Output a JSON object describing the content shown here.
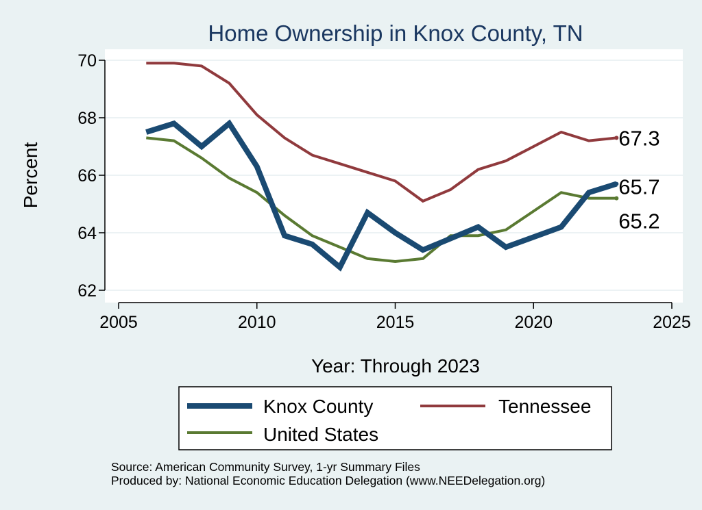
{
  "chart_data": {
    "type": "line",
    "title": "Home Ownership in Knox County, TN",
    "xlabel": "Year: Through 2023",
    "ylabel": "Percent",
    "xlim": [
      2005,
      2025
    ],
    "ylim": [
      62,
      70
    ],
    "x_ticks": [
      2005,
      2010,
      2015,
      2020,
      2025
    ],
    "y_ticks": [
      62,
      64,
      66,
      68,
      70
    ],
    "grid": "horizontal",
    "legend_position": "bottom",
    "series": [
      {
        "name": "Knox County",
        "color": "#1a4a72",
        "x": [
          2006,
          2007,
          2008,
          2009,
          2010,
          2011,
          2012,
          2013,
          2014,
          2015,
          2016,
          2017,
          2018,
          2019,
          2021,
          2022,
          2023
        ],
        "values": [
          67.5,
          67.8,
          67.0,
          67.8,
          66.3,
          63.9,
          63.6,
          62.8,
          64.7,
          64.0,
          63.4,
          63.8,
          64.2,
          63.5,
          64.2,
          65.4,
          65.7
        ],
        "end_label": "65.7"
      },
      {
        "name": "Tennessee",
        "color": "#903a3d",
        "x": [
          2006,
          2007,
          2008,
          2009,
          2010,
          2011,
          2012,
          2013,
          2014,
          2015,
          2016,
          2017,
          2018,
          2019,
          2021,
          2022,
          2023
        ],
        "values": [
          69.9,
          69.9,
          69.8,
          69.2,
          68.1,
          67.3,
          66.7,
          66.4,
          66.1,
          65.8,
          65.1,
          65.5,
          66.2,
          66.5,
          67.5,
          67.2,
          67.3
        ],
        "end_label": "67.3"
      },
      {
        "name": "United States",
        "color": "#5a7a32",
        "x": [
          2006,
          2007,
          2008,
          2009,
          2010,
          2011,
          2012,
          2013,
          2014,
          2015,
          2016,
          2017,
          2018,
          2019,
          2021,
          2022,
          2023
        ],
        "values": [
          67.3,
          67.2,
          66.6,
          65.9,
          65.4,
          64.6,
          63.9,
          63.5,
          63.1,
          63.0,
          63.1,
          63.9,
          63.9,
          64.1,
          65.4,
          65.2,
          65.2
        ],
        "end_label": "65.2"
      }
    ],
    "notes": [
      "Source: American Community Survey, 1-yr Summary Files",
      "Produced by: National Economic Education Delegation (www.NEEDelegation.org)"
    ]
  },
  "colors": {
    "page_background": "#eaf2f3",
    "plot_background": "#ffffff",
    "gridline": "#e6eef0",
    "title": "#1a3760"
  }
}
